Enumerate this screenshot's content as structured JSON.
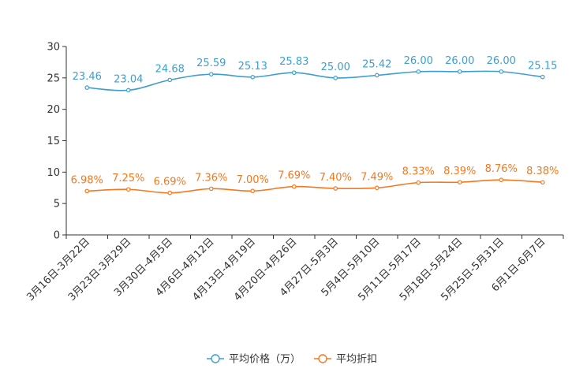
{
  "chart_data": {
    "type": "line",
    "title": "",
    "xlabel": "",
    "ylabel": "",
    "ylim": [
      0,
      30
    ],
    "yticks": [
      0,
      5,
      10,
      15,
      20,
      25,
      30
    ],
    "grid": false,
    "legend_position": "bottom-center",
    "categories": [
      "3月16日-3月22日",
      "3月23日-3月29日",
      "3月30日-4月5日",
      "4月6日-4月12日",
      "4月13日-4月19日",
      "4月20日-4月26日",
      "4月27日-5月3日",
      "5月4日-5月10日",
      "5月11日-5月17日",
      "5月18日-5月24日",
      "5月25日-5月31日",
      "6月1日-6月7日"
    ],
    "series": [
      {
        "name": "平均价格（万）",
        "color": "#3d9fd0",
        "values": [
          23.46,
          23.04,
          24.68,
          25.59,
          25.13,
          25.83,
          25.0,
          25.42,
          26.0,
          26.0,
          26.0,
          25.15
        ],
        "labels": [
          "23.46",
          "23.04",
          "24.68",
          "25.59",
          "25.13",
          "25.83",
          "25.00",
          "25.42",
          "26.00",
          "26.00",
          "26.00",
          "25.15"
        ]
      },
      {
        "name": "平均折扣",
        "color": "#f5781e",
        "values": [
          6.98,
          7.25,
          6.69,
          7.36,
          7.0,
          7.69,
          7.4,
          7.49,
          8.33,
          8.39,
          8.76,
          8.38
        ],
        "labels": [
          "6.98%",
          "7.25%",
          "6.69%",
          "7.36%",
          "7.00%",
          "7.69%",
          "7.40%",
          "7.49%",
          "8.33%",
          "8.39%",
          "8.76%",
          "8.38%"
        ]
      }
    ]
  }
}
